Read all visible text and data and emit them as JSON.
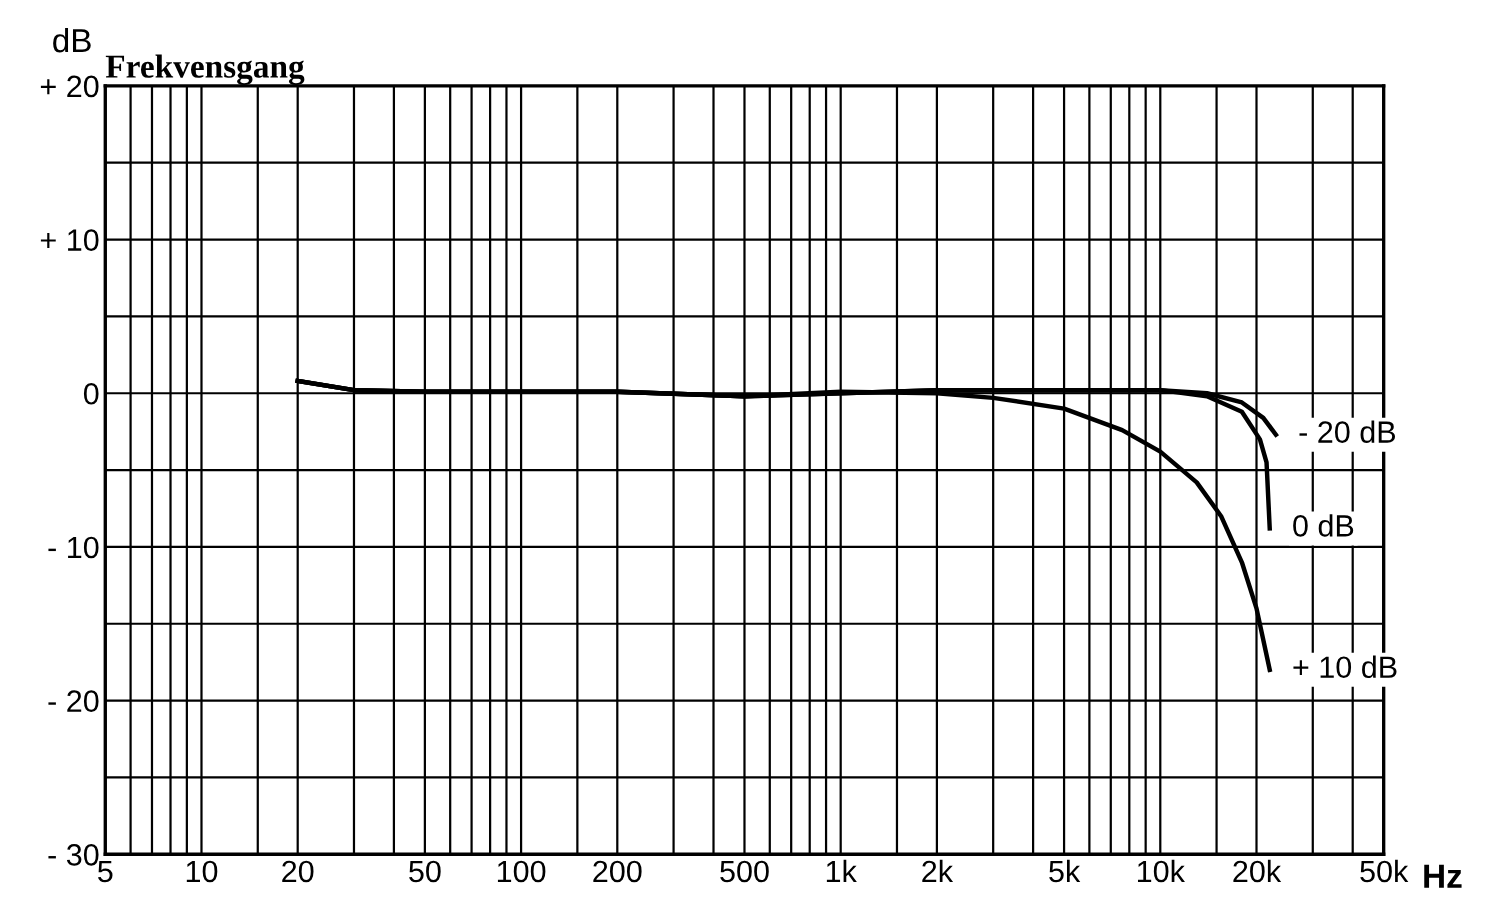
{
  "chart_data": {
    "type": "line",
    "title": "Frekvensgang",
    "xlabel": "Hz",
    "ylabel": "dB",
    "log": "x",
    "xlim": [
      5,
      50000
    ],
    "ylim": [
      -30,
      20
    ],
    "xticks": [
      {
        "value": 5,
        "label": "5"
      },
      {
        "value": 6,
        "label": null
      },
      {
        "value": 7,
        "label": null
      },
      {
        "value": 8,
        "label": null
      },
      {
        "value": 9,
        "label": null
      },
      {
        "value": 10,
        "label": "10"
      },
      {
        "value": 15,
        "label": null
      },
      {
        "value": 20,
        "label": "20"
      },
      {
        "value": 30,
        "label": null
      },
      {
        "value": 40,
        "label": null
      },
      {
        "value": 50,
        "label": "50"
      },
      {
        "value": 60,
        "label": null
      },
      {
        "value": 70,
        "label": null
      },
      {
        "value": 80,
        "label": null
      },
      {
        "value": 90,
        "label": null
      },
      {
        "value": 100,
        "label": "100"
      },
      {
        "value": 150,
        "label": null
      },
      {
        "value": 200,
        "label": "200"
      },
      {
        "value": 300,
        "label": null
      },
      {
        "value": 400,
        "label": null
      },
      {
        "value": 500,
        "label": "500"
      },
      {
        "value": 600,
        "label": null
      },
      {
        "value": 700,
        "label": null
      },
      {
        "value": 800,
        "label": null
      },
      {
        "value": 900,
        "label": null
      },
      {
        "value": 1000,
        "label": "1k"
      },
      {
        "value": 1500,
        "label": null
      },
      {
        "value": 2000,
        "label": "2k"
      },
      {
        "value": 3000,
        "label": null
      },
      {
        "value": 4000,
        "label": null
      },
      {
        "value": 5000,
        "label": "5k"
      },
      {
        "value": 6000,
        "label": null
      },
      {
        "value": 7000,
        "label": null
      },
      {
        "value": 8000,
        "label": null
      },
      {
        "value": 9000,
        "label": null
      },
      {
        "value": 10000,
        "label": "10k"
      },
      {
        "value": 15000,
        "label": null
      },
      {
        "value": 20000,
        "label": "20k"
      },
      {
        "value": 30000,
        "label": null
      },
      {
        "value": 40000,
        "label": null
      },
      {
        "value": 50000,
        "label": "50k"
      }
    ],
    "yticks": [
      {
        "value": -30,
        "label": "- 30"
      },
      {
        "value": -25,
        "label": null
      },
      {
        "value": -20,
        "label": "- 20"
      },
      {
        "value": -15,
        "label": null
      },
      {
        "value": -10,
        "label": "- 10"
      },
      {
        "value": -5,
        "label": null
      },
      {
        "value": 0,
        "label": "0"
      },
      {
        "value": 5,
        "label": null
      },
      {
        "value": 10,
        "label": "+ 10"
      },
      {
        "value": 15,
        "label": null
      },
      {
        "value": 20,
        "label": "+ 20"
      }
    ],
    "grid": true,
    "legend": false,
    "marker": "none",
    "line_style": "solid",
    "series": [
      {
        "name": "- 20 dB",
        "color": "#000000",
        "x": [
          20,
          30,
          50,
          100,
          200,
          500,
          1000,
          2000,
          5000,
          10000,
          14000,
          18000,
          21000,
          23000
        ],
        "values": [
          0.8,
          0.2,
          0.1,
          0.1,
          0.1,
          -0.2,
          0,
          0.2,
          0.2,
          0.2,
          0,
          -0.6,
          -1.6,
          -2.7
        ]
      },
      {
        "name": "0 dB",
        "color": "#000000",
        "x": [
          20,
          30,
          50,
          100,
          200,
          500,
          1000,
          2000,
          5000,
          10000,
          14000,
          18000,
          20500,
          21500,
          22000
        ],
        "values": [
          0.8,
          0.2,
          0.1,
          0.1,
          0.1,
          -0.2,
          0,
          0.2,
          0.2,
          0.2,
          -0.2,
          -1.2,
          -3,
          -4.5,
          -8.8
        ]
      },
      {
        "name": "+ 10 dB",
        "color": "#000000",
        "x": [
          20,
          30,
          50,
          100,
          200,
          500,
          1000,
          2000,
          3000,
          5000,
          7600,
          10000,
          13000,
          15500,
          18000,
          20000,
          22000
        ],
        "values": [
          0.8,
          0.2,
          0.1,
          0.1,
          0.1,
          -0.2,
          0.1,
          0,
          -0.3,
          -1,
          -2.4,
          -3.8,
          -5.8,
          -8,
          -11,
          -14,
          -18
        ]
      }
    ]
  }
}
